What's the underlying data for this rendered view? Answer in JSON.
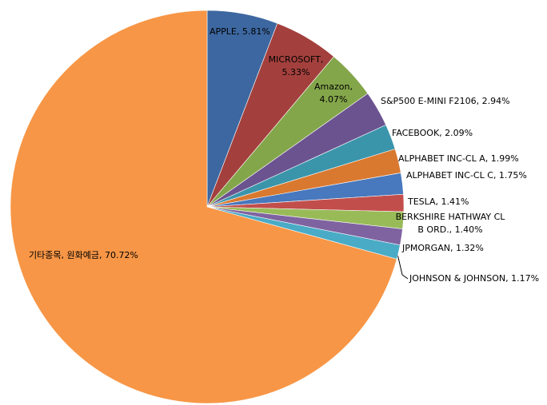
{
  "chart_data": {
    "type": "pie",
    "labels": [
      "APPLE, 5.81%",
      "MICROSOFT,\n5.33%",
      "Amazon,\n4.07%",
      "S&P500 E-MINI F2106, 2.94%",
      "FACEBOOK, 2.09%",
      "ALPHABET INC-CL A, 1.99%",
      "ALPHABET INC-CL C, 1.75%",
      "TESLA, 1.41%",
      "BERKSHIRE HATHWAY CL\nB ORD., 1.40%",
      "JPMORGAN, 1.32%",
      "JOHNSON & JOHNSON, 1.17%",
      "기타종목, 원화예금, 70.72%"
    ],
    "values": [
      5.81,
      5.33,
      4.07,
      2.94,
      2.09,
      1.99,
      1.75,
      1.41,
      1.4,
      1.32,
      1.17,
      70.72
    ],
    "colors": [
      "#3d67a0",
      "#a3403d",
      "#84a64a",
      "#6b5390",
      "#3a95ab",
      "#d9792f",
      "#4878bd",
      "#c24e4b",
      "#98bb58",
      "#7f63a1",
      "#4aabc6",
      "#f79646"
    ]
  }
}
